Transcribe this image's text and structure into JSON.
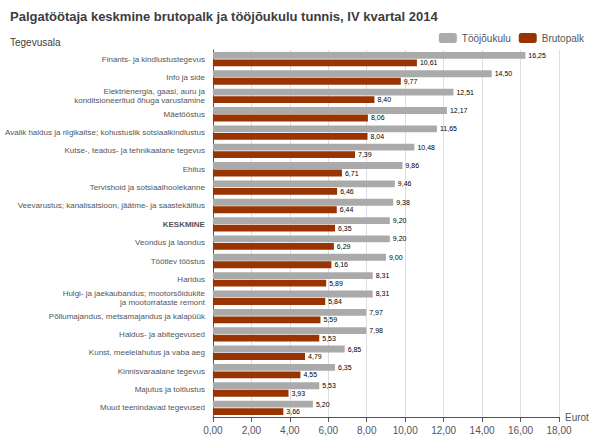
{
  "chart_data": {
    "type": "bar",
    "orientation": "horizontal",
    "title": "Palgatöötaja keskmine brutopalk ja tööjõukulu tunnis, IV kvartal 2014",
    "ylabel": "Tegevusala",
    "xlabel": "Eurot",
    "categories": [
      "Finants- ja kindlustustegevus",
      "Info ja side",
      "Elektrienergia, gaasi, auru ja\nkonditsioneeritud õhuga varustamine",
      "Mäetööstus",
      "Avalik haldus ja riigikaitse; kohustuslik sotsiaalkindlustus",
      "Kutse-, teadus- ja tehnikaalane tegevus",
      "Ehitus",
      "Tervishoid ja sotsiaalhoolekanne",
      "Veevarustus; kanalisatsioon, jäätme- ja saastekäitlus",
      "KESKMINE",
      "Veondus ja laondus",
      "Töötlev tööstus",
      "Haridus",
      "Hulgi- ja jaekaubandus; mootorsõidukite\nja mootorrataste remont",
      "Põllumajandus, metsamajandus ja kalapüük",
      "Haldus- ja abitegevused",
      "Kunst, meelelahutus ja vaba aeg",
      "Kinnisvaraalane tegevus",
      "Majutus ja toitlustus",
      "Muud teenindavad tegevused"
    ],
    "series": [
      {
        "name": "Tööjõukulu",
        "color": "#aaaaaa",
        "values": [
          16.25,
          14.5,
          12.51,
          12.17,
          11.65,
          10.48,
          9.86,
          9.46,
          9.38,
          9.2,
          9.2,
          9.0,
          8.31,
          8.31,
          7.97,
          7.98,
          6.85,
          6.35,
          5.53,
          5.2
        ],
        "value_labels": [
          "16,25",
          "14,50",
          "12,51",
          "12,17",
          "11,65",
          "10,48",
          "9,86",
          "9,46",
          "9,38",
          "9,20",
          "9,20",
          "9,00",
          "8,31",
          "8,31",
          "7,97",
          "7,98",
          "6,85",
          "6,35",
          "5,53",
          "5,20"
        ]
      },
      {
        "name": "Brutopalk",
        "color": "#993300",
        "values": [
          10.61,
          9.77,
          8.4,
          8.06,
          8.04,
          7.39,
          6.71,
          6.46,
          6.44,
          6.35,
          6.29,
          6.16,
          5.89,
          5.84,
          5.59,
          5.53,
          4.79,
          4.55,
          3.93,
          3.66
        ],
        "value_labels": [
          "10,61",
          "9,77",
          "8,40",
          "8,06",
          "8,04",
          "7,39",
          "6,71",
          "6,46",
          "6,44",
          "6,35",
          "6,29",
          "6,16",
          "5,89",
          "5,84",
          "5,59",
          "5,53",
          "4,79",
          "4,55",
          "3,93",
          "3,66"
        ]
      }
    ],
    "xlim": [
      0,
      18
    ],
    "xticks": [
      {
        "value": 0,
        "label": "0,00"
      },
      {
        "value": 2,
        "label": "2,00"
      },
      {
        "value": 4,
        "label": "4,00"
      },
      {
        "value": 6,
        "label": "6,00"
      },
      {
        "value": 8,
        "label": "8,00"
      },
      {
        "value": 10,
        "label": "10,00"
      },
      {
        "value": 12,
        "label": "12,00"
      },
      {
        "value": 14,
        "label": "14,00"
      },
      {
        "value": 16,
        "label": "16,00"
      },
      {
        "value": 18,
        "label": "18,00"
      }
    ],
    "grid": true,
    "legend": "upper right",
    "data_labels": true
  }
}
